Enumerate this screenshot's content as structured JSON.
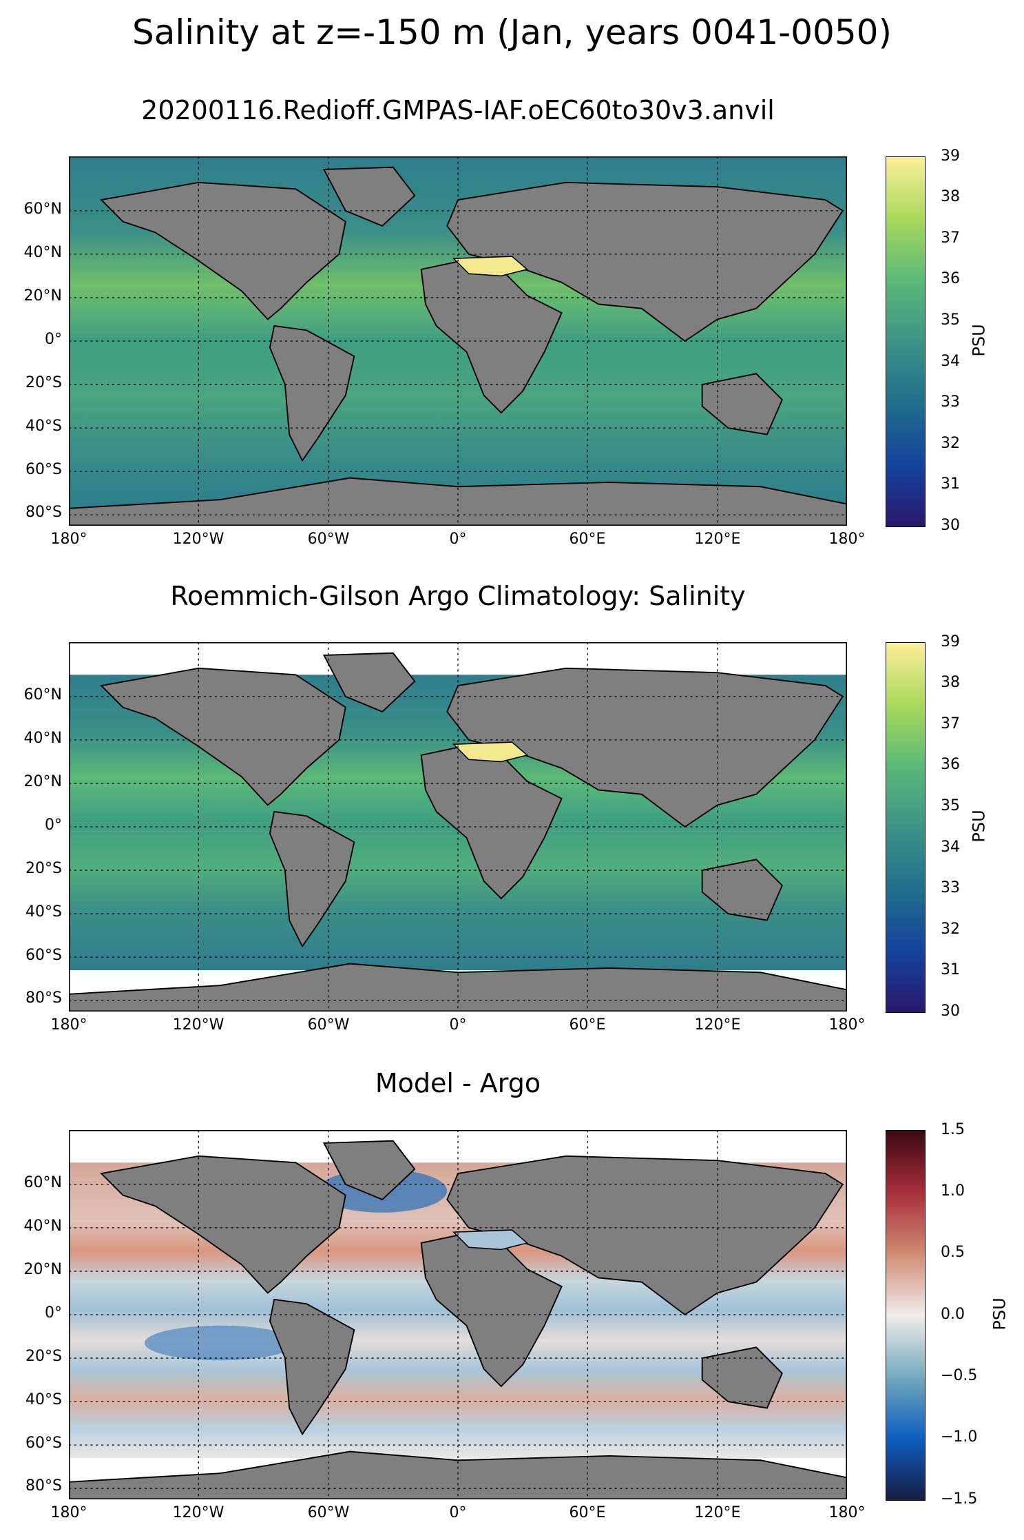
{
  "suptitle": "Salinity at z=-150 m (Jan, years 0041-0050)",
  "lat_ticks": [
    "60°N",
    "40°N",
    "20°N",
    "0°",
    "20°S",
    "40°S",
    "60°S",
    "80°S"
  ],
  "lon_ticks": [
    "180°",
    "120°W",
    "60°W",
    "0°",
    "60°E",
    "120°E",
    "180°"
  ],
  "panels": [
    {
      "title": "20200116.Redioff.GMPAS-IAF.oEC60to30v3.anvil",
      "colormap": "haline",
      "colorbar_label": "PSU",
      "colorbar_ticks": [
        "39",
        "38",
        "37",
        "36",
        "35",
        "34",
        "33",
        "32",
        "31",
        "30"
      ],
      "colorbar_range": [
        30,
        39
      ]
    },
    {
      "title": "Roemmich-Gilson Argo Climatology: Salinity",
      "colormap": "haline",
      "colorbar_label": "PSU",
      "colorbar_ticks": [
        "39",
        "38",
        "37",
        "36",
        "35",
        "34",
        "33",
        "32",
        "31",
        "30"
      ],
      "colorbar_range": [
        30,
        39
      ]
    },
    {
      "title": "Model - Argo",
      "colormap": "balance",
      "colorbar_label": "PSU",
      "colorbar_ticks": [
        "1.5",
        "1.0",
        "0.5",
        "0.0",
        "−0.5",
        "−1.0",
        "−1.5"
      ],
      "colorbar_range": [
        -1.5,
        1.5
      ]
    }
  ],
  "colors": {
    "land": "#7f7f7f",
    "haline": [
      "#2a186c",
      "#14439c",
      "#206e8b",
      "#3c9387",
      "#5ab978",
      "#aad85c",
      "#fdef9a"
    ],
    "balance": [
      "#181c43",
      "#0c5ebe",
      "#75aabe",
      "#f1eceb",
      "#d08b73",
      "#a72e3b",
      "#3c0912"
    ]
  }
}
